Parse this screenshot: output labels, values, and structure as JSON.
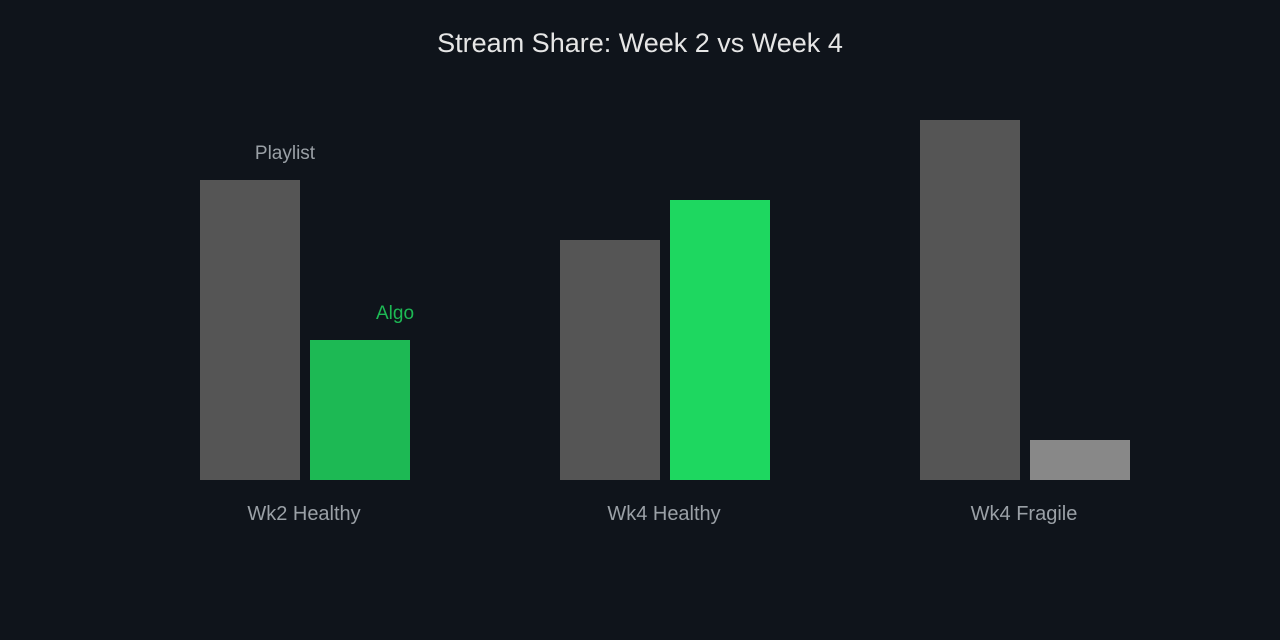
{
  "chart_data": {
    "type": "bar",
    "title": "Stream Share: Week 2 vs Week 4",
    "xlabel": "",
    "ylabel": "",
    "grid": false,
    "legend": "none",
    "categories": [
      "Wk2 Healthy",
      "Wk4 Healthy",
      "Wk4 Fragile"
    ],
    "ylim": [
      0,
      100
    ],
    "series": [
      {
        "name": "Playlist",
        "values": [
          75,
          60,
          90
        ]
      },
      {
        "name": "Algo",
        "values": [
          35,
          70,
          10
        ]
      }
    ],
    "bar_colors": [
      [
        "#555555",
        "#1db954"
      ],
      [
        "#555555",
        "#1ed760"
      ],
      [
        "#555555",
        "#888888"
      ]
    ],
    "label_colors": {
      "Playlist": "#9aa0a6",
      "Algo": "#1db954"
    },
    "labeled_category_index": 0
  }
}
